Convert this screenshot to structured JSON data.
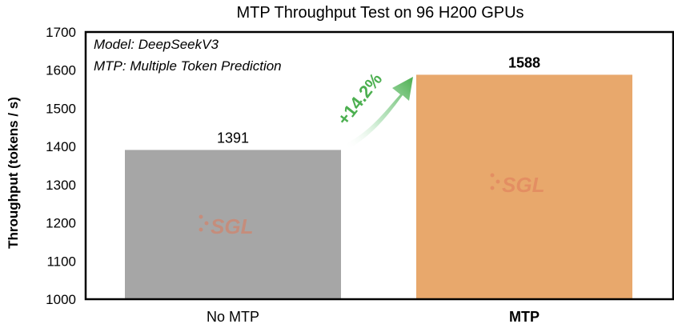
{
  "chart_data": {
    "type": "bar",
    "title": "MTP Throughput Test on 96 H200 GPUs",
    "xlabel": "",
    "ylabel": "Throughput (tokens / s)",
    "ylim": [
      1000,
      1700
    ],
    "yticks": [
      1000,
      1100,
      1200,
      1300,
      1400,
      1500,
      1600,
      1700
    ],
    "grid": false,
    "categories": [
      "No MTP",
      "MTP"
    ],
    "values": [
      1391,
      1588
    ],
    "value_labels": [
      "1391",
      "1588"
    ],
    "bar_colors": [
      "#a6a6a6",
      "#e8a86c"
    ],
    "annotations": {
      "model": "Model: DeepSeekV3",
      "mtp": "MTP: Multiple Token Prediction",
      "speedup": "+14.2%"
    },
    "watermark": "SGL",
    "colors": {
      "speedup": "#4caf50",
      "logo": "#e07a5a"
    }
  }
}
